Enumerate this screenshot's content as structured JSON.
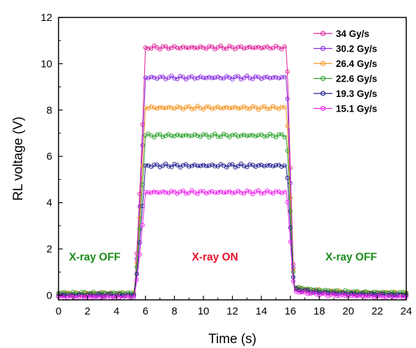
{
  "chart_data": {
    "type": "line",
    "title": "",
    "xlabel": "Time (s)",
    "ylabel": "RL voltage (V)",
    "xlim": [
      0,
      24
    ],
    "ylim": [
      -0.2,
      12
    ],
    "xticks": [
      0,
      2,
      4,
      6,
      8,
      10,
      12,
      14,
      16,
      18,
      20,
      22,
      24
    ],
    "yticks": [
      0,
      2,
      4,
      6,
      8,
      10,
      12
    ],
    "grid": false,
    "legend_position": "top-right",
    "on_interval": [
      5.5,
      16
    ],
    "series": [
      {
        "name": "34 Gy/s",
        "color": "#e0209a",
        "baseline": 0.05,
        "plateau": 10.7
      },
      {
        "name": "30.2 Gy/s",
        "color": "#8a2be2",
        "baseline": 0.03,
        "plateau": 9.4
      },
      {
        "name": "26.4 Gy/s",
        "color": "#f5931e",
        "baseline": 0.08,
        "plateau": 8.1
      },
      {
        "name": "22.6 Gy/s",
        "color": "#2ca02c",
        "baseline": 0.1,
        "plateau": 6.9
      },
      {
        "name": "19.3 Gy/s",
        "color": "#1f1f8f",
        "baseline": 0.0,
        "plateau": 5.6
      },
      {
        "name": "15.1 Gy/s",
        "color": "#ee22ee",
        "baseline": -0.08,
        "plateau": 4.45
      }
    ],
    "annotations": [
      {
        "text": "X-ray OFF",
        "x": 2.5,
        "y": 1.5,
        "color": "#1a8c1a"
      },
      {
        "text": "X-ray ON",
        "x": 10.8,
        "y": 1.5,
        "color": "#e8102a"
      },
      {
        "text": "X-ray OFF",
        "x": 20.2,
        "y": 1.5,
        "color": "#1a8c1a"
      }
    ]
  }
}
